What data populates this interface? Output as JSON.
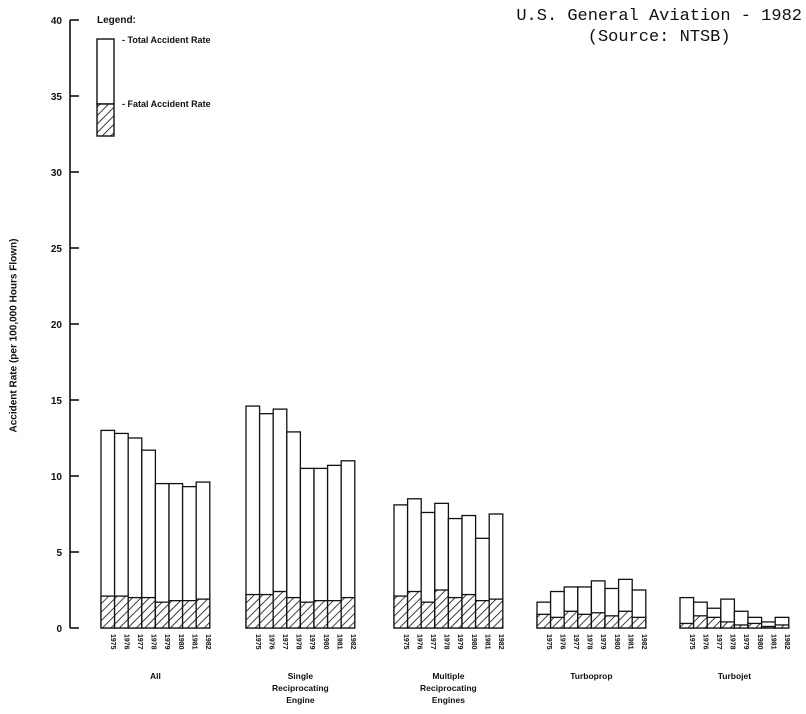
{
  "chart_data": {
    "type": "bar",
    "title": "U.S. General Aviation - 1982",
    "subtitle": "(Source: NTSB)",
    "ylabel": "Accident Rate (per 100,000 Hours Flown)",
    "ylim": [
      0,
      40
    ],
    "yticks": [
      "0",
      "5",
      "10",
      "15",
      "20",
      "25",
      "30",
      "35",
      "40"
    ],
    "legend": {
      "heading": "Legend:",
      "total_label": "- Total Accident Rate",
      "fatal_label": "- Fatal Accident Rate"
    },
    "years": [
      "1975",
      "1976",
      "1977",
      "1978",
      "1979",
      "1980",
      "1981",
      "1982"
    ],
    "groups": [
      {
        "label": "All",
        "total": [
          13.0,
          12.8,
          12.5,
          11.7,
          9.5,
          9.5,
          9.3,
          9.6
        ],
        "fatal": [
          2.1,
          2.1,
          2.0,
          2.0,
          1.7,
          1.8,
          1.8,
          1.9
        ]
      },
      {
        "label": "Single Reciprocating Engine",
        "total": [
          14.6,
          14.1,
          14.4,
          12.9,
          10.5,
          10.5,
          10.7,
          11.0
        ],
        "fatal": [
          2.2,
          2.2,
          2.4,
          2.0,
          1.7,
          1.8,
          1.8,
          2.0
        ]
      },
      {
        "label": "Multiple Reciprocating Engines",
        "total": [
          8.1,
          8.5,
          7.6,
          8.2,
          7.2,
          7.4,
          5.9,
          7.5
        ],
        "fatal": [
          2.1,
          2.4,
          1.7,
          2.5,
          2.0,
          2.2,
          1.8,
          1.9
        ]
      },
      {
        "label": "Turboprop",
        "total": [
          1.7,
          2.4,
          2.7,
          2.7,
          3.1,
          2.6,
          3.2,
          2.5
        ],
        "fatal": [
          0.9,
          0.7,
          1.1,
          0.9,
          1.0,
          0.8,
          1.1,
          0.7
        ]
      },
      {
        "label": "Turbojet",
        "total": [
          2.0,
          1.7,
          1.3,
          1.9,
          1.1,
          0.7,
          0.4,
          0.7
        ],
        "fatal": [
          0.3,
          0.8,
          0.7,
          0.4,
          0.2,
          0.3,
          0.1,
          0.2
        ]
      }
    ]
  }
}
